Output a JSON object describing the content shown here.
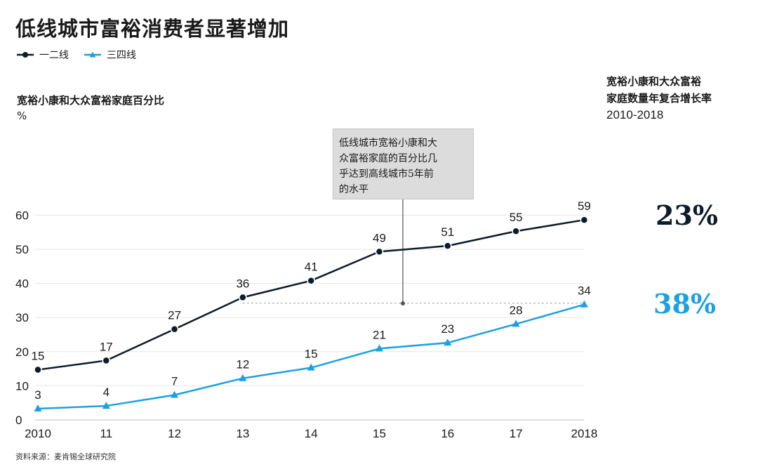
{
  "title": "低线城市富裕消费者显著增加",
  "legend": [
    {
      "label": "一二线",
      "color": "#0d1b2a",
      "marker": "circle"
    },
    {
      "label": "三四线",
      "color": "#1ba1e2",
      "marker": "triangle"
    }
  ],
  "y_axis_title": "宽裕小康和大众富裕家庭百分比",
  "y_axis_unit": "%",
  "cagr": {
    "heading_line1": "宽裕小康和大众富裕",
    "heading_line2": "家庭数量年复合增长率",
    "period": "2010-2018",
    "value_tier12": "23%",
    "value_tier34": "38%"
  },
  "annotation": {
    "text_line1": "低线城市宽裕小康和大",
    "text_line2": "众富裕家庭的百分比几",
    "text_line3": "乎达到高线城市5年前",
    "text_line4": "的水平"
  },
  "source": "资料来源：麦肯锡全球研究院",
  "chart_data": {
    "type": "line",
    "title": "低线城市富裕消费者显著增加",
    "ylabel": "宽裕小康和大众富裕家庭百分比 %",
    "xlabel": "",
    "categories": [
      "2010",
      "11",
      "12",
      "13",
      "14",
      "15",
      "16",
      "17",
      "2018"
    ],
    "ylim": [
      0,
      60
    ],
    "yticks": [
      0,
      10,
      20,
      30,
      40,
      50,
      60
    ],
    "grid": true,
    "series": [
      {
        "name": "一二线",
        "color": "#0d1b2a",
        "marker": "circle",
        "values": [
          15,
          17,
          27,
          36,
          41,
          49,
          51,
          55,
          59
        ],
        "plot_values": [
          14.7,
          17.4,
          26.6,
          35.9,
          40.8,
          49.3,
          51.0,
          55.3,
          58.6
        ]
      },
      {
        "name": "三四线",
        "color": "#1ba1e2",
        "marker": "triangle",
        "values": [
          3,
          4,
          7,
          12,
          15,
          21,
          23,
          28,
          34
        ],
        "plot_values": [
          3.3,
          4.1,
          7.3,
          12.2,
          15.3,
          20.9,
          22.6,
          28.1,
          33.8
        ]
      }
    ],
    "reference_line": {
      "value": 34,
      "style": "dashed",
      "from_category": "13",
      "to_category": "2018"
    }
  }
}
